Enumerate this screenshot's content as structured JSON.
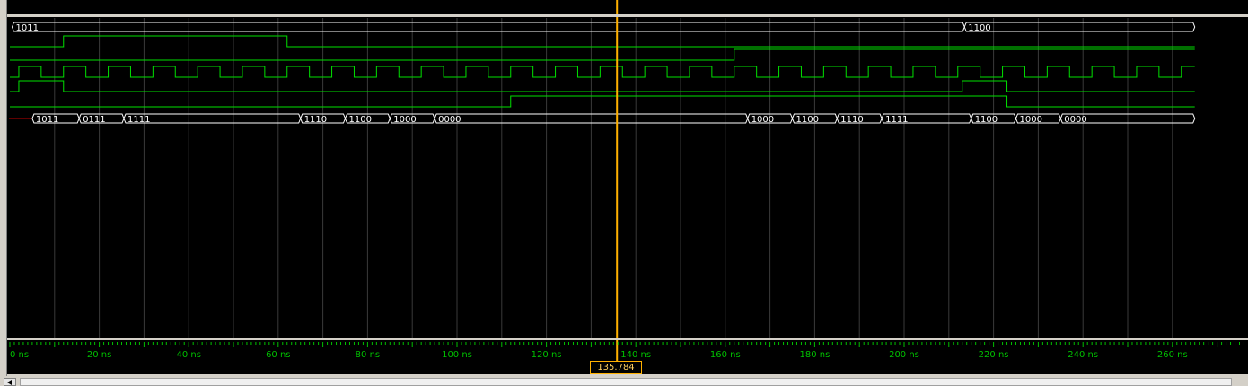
{
  "signals": [
    {
      "id": "bus-top",
      "type": "bus",
      "segments": [
        {
          "t0": 0.5,
          "t1": 213.5,
          "label": "1011"
        },
        {
          "t0": 213.5,
          "t1": 265,
          "label": "1100"
        }
      ]
    },
    {
      "id": "sig-a",
      "type": "bit",
      "initial": 0,
      "edges": [
        12,
        62
      ]
    },
    {
      "id": "sig-b",
      "type": "bit",
      "initial": 0,
      "edges": [
        162
      ]
    },
    {
      "id": "clk",
      "type": "clock",
      "initial": 0,
      "start": 2,
      "period": 10
    },
    {
      "id": "sig-c",
      "type": "bit",
      "initial": 0,
      "edges": [
        2,
        12,
        213,
        223
      ]
    },
    {
      "id": "sig-d",
      "type": "bit",
      "initial": 0,
      "edges": [
        112,
        223
      ]
    },
    {
      "id": "bus-out",
      "type": "bus",
      "segments": [
        {
          "t0": 5,
          "t1": 15.5,
          "label": "1011"
        },
        {
          "t0": 15.5,
          "t1": 25.5,
          "label": "0111"
        },
        {
          "t0": 25.5,
          "t1": 65,
          "label": "1111"
        },
        {
          "t0": 65,
          "t1": 75,
          "label": "1110"
        },
        {
          "t0": 75,
          "t1": 85,
          "label": "1100"
        },
        {
          "t0": 85,
          "t1": 95,
          "label": "1000"
        },
        {
          "t0": 95,
          "t1": 165,
          "label": "0000"
        },
        {
          "t0": 165,
          "t1": 175,
          "label": "1000"
        },
        {
          "t0": 175,
          "t1": 185,
          "label": "1100"
        },
        {
          "t0": 185,
          "t1": 195,
          "label": "1110"
        },
        {
          "t0": 195,
          "t1": 215,
          "label": "1111"
        },
        {
          "t0": 215,
          "t1": 225,
          "label": "1100"
        },
        {
          "t0": 225,
          "t1": 235,
          "label": "1000"
        },
        {
          "t0": 235,
          "t1": 265,
          "label": "0000"
        }
      ]
    }
  ],
  "timeline": {
    "unit": "ns",
    "ticks": [
      {
        "t": 0,
        "label": "0 ns"
      },
      {
        "t": 20,
        "label": "20 ns"
      },
      {
        "t": 40,
        "label": "40 ns"
      },
      {
        "t": 60,
        "label": "60 ns"
      },
      {
        "t": 80,
        "label": "80 ns"
      },
      {
        "t": 100,
        "label": "100 ns"
      },
      {
        "t": 120,
        "label": "120 ns"
      },
      {
        "t": 140,
        "label": "140 ns"
      },
      {
        "t": 160,
        "label": "160 ns"
      },
      {
        "t": 180,
        "label": "180 ns"
      },
      {
        "t": 200,
        "label": "200 ns"
      },
      {
        "t": 220,
        "label": "220 ns"
      },
      {
        "t": 240,
        "label": "240 ns"
      },
      {
        "t": 260,
        "label": "260 ns"
      }
    ],
    "end_time": 265
  },
  "cursor": {
    "time": 135.784,
    "label": "135.784 ns"
  },
  "colors": {
    "wave": "#00e000",
    "bus_text": "#ffffff",
    "grid": "#3a3a3a",
    "cursor": "#ffb000",
    "marker": "#c00000",
    "ruler": "#00c000"
  }
}
